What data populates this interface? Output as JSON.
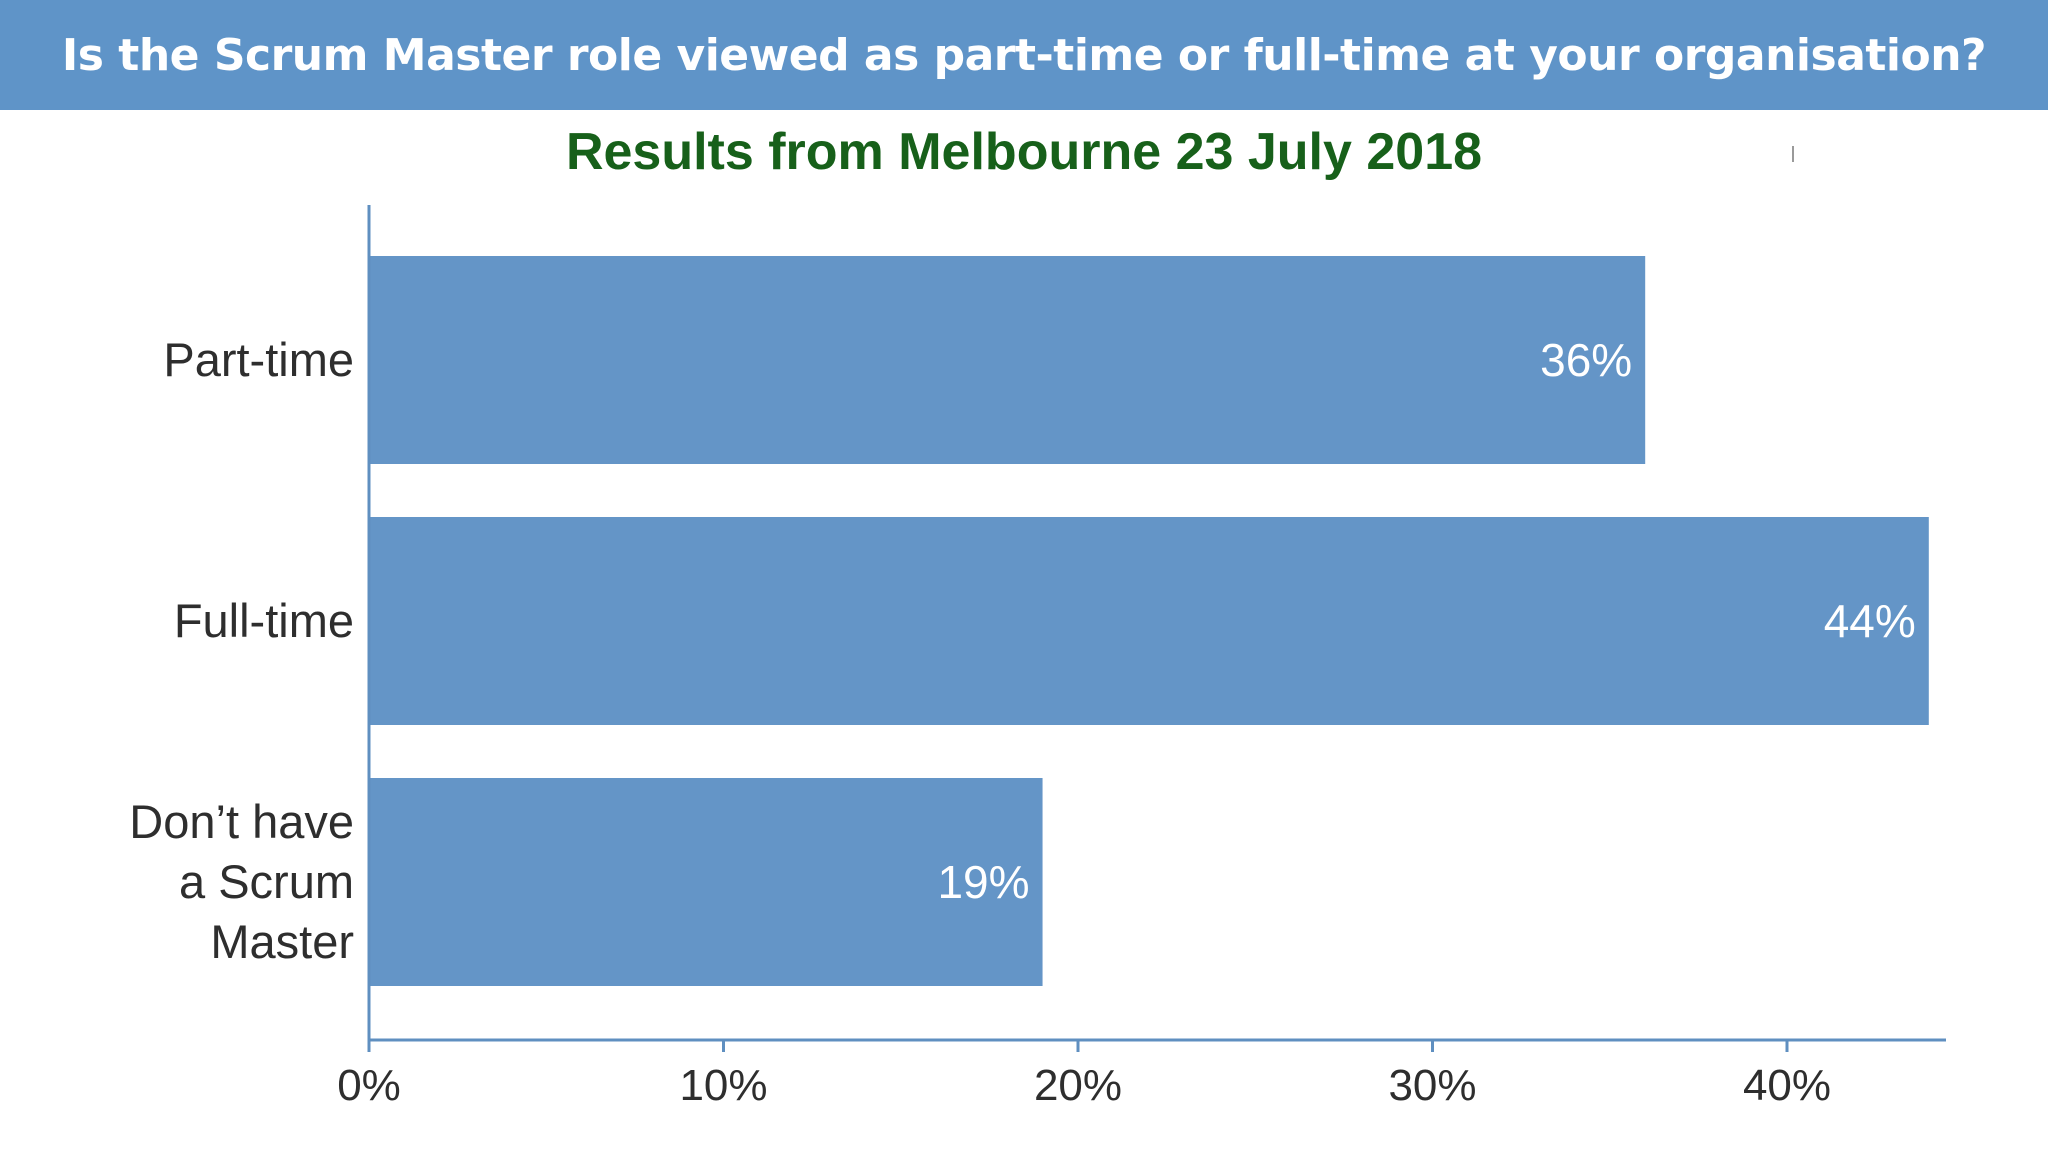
{
  "header": {
    "title": "Is the Scrum Master role viewed as part-time or full-time at your organisation?"
  },
  "chart_data": {
    "type": "bar",
    "orientation": "horizontal",
    "title": "Results from Melbourne 23 July 2018",
    "categories": [
      [
        "Part-time"
      ],
      [
        "Full-time"
      ],
      [
        "Don’t have",
        "a Scrum",
        "Master"
      ]
    ],
    "values": [
      36,
      44,
      19
    ],
    "value_labels": [
      "36%",
      "44%",
      "19%"
    ],
    "xlim": [
      0,
      44.5
    ],
    "x_ticks": [
      0,
      10,
      20,
      30,
      40
    ],
    "x_tick_labels": [
      "0%",
      "10%",
      "20%",
      "30%",
      "40%"
    ],
    "grid": false,
    "bar_color": "#6495c7",
    "axis_color": "#5f8fc0"
  }
}
